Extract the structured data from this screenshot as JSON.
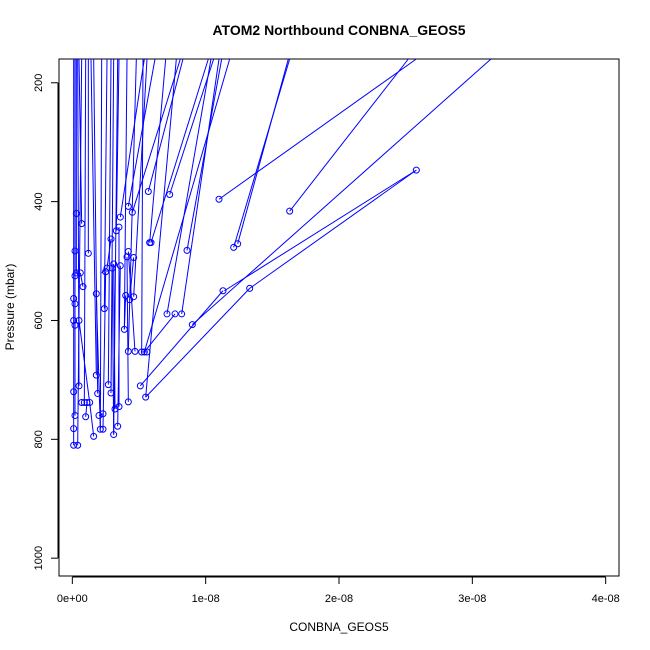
{
  "chart_data": {
    "type": "line",
    "title": "ATOM2 Northbound CONBNA_GEOS5",
    "xlabel": "CONBNA_GEOS5",
    "ylabel": "Pressure (mbar)",
    "xlim": [
      -1e-09,
      4.1e-08
    ],
    "ylim": [
      1030,
      160
    ],
    "y_reversed": true,
    "grid": false,
    "x_ticks": [
      0,
      1e-08,
      2e-08,
      3e-08,
      4e-08
    ],
    "x_tick_labels": [
      "0e+00",
      "1e-08",
      "2e-08",
      "3e-08",
      "4e-08"
    ],
    "y_ticks": [
      200,
      400,
      600,
      800,
      1000
    ],
    "y_tick_labels": [
      "200",
      "400",
      "600",
      "800",
      "1000"
    ],
    "series_color": "#0000ff",
    "marker": "open-circle",
    "points": [
      [
        1e-10,
        810
      ],
      [
        1e-10,
        782
      ],
      [
        2e-10,
        760
      ],
      [
        1e-10,
        720
      ],
      [
        2e-10,
        608
      ],
      [
        1e-10,
        600
      ],
      [
        2e-10,
        572
      ],
      [
        1e-10,
        563
      ],
      [
        2e-10,
        525
      ],
      [
        3e-10,
        520
      ],
      [
        2e-10,
        483
      ],
      [
        3e-10,
        420
      ],
      [
        4e-10,
        810
      ],
      [
        5e-10,
        710
      ],
      [
        5e-10,
        600
      ],
      [
        6e-10,
        520
      ],
      [
        7e-10,
        437
      ],
      [
        7e-10,
        738
      ],
      [
        8e-10,
        543
      ],
      [
        9e-10,
        738
      ],
      [
        1e-09,
        762
      ],
      [
        1.1e-09,
        738
      ],
      [
        1.3e-09,
        738
      ],
      [
        1.2e-09,
        487
      ],
      [
        1.6e-09,
        795
      ],
      [
        1.8e-09,
        692
      ],
      [
        1.8e-09,
        555
      ],
      [
        1.9e-09,
        723
      ],
      [
        2e-09,
        760
      ],
      [
        2.1e-09,
        783
      ],
      [
        2.3e-09,
        783
      ],
      [
        2.3e-09,
        757
      ],
      [
        2.4e-09,
        580
      ],
      [
        2.5e-09,
        518
      ],
      [
        2.6e-09,
        512
      ],
      [
        2.7e-09,
        708
      ],
      [
        2.9e-09,
        722
      ],
      [
        2.9e-09,
        463
      ],
      [
        3e-09,
        512
      ],
      [
        3.1e-09,
        792
      ],
      [
        3.2e-09,
        749
      ],
      [
        3.1e-09,
        505
      ],
      [
        3.3e-09,
        449
      ],
      [
        3.4e-09,
        778
      ],
      [
        3.5e-09,
        745
      ],
      [
        3.6e-09,
        508
      ],
      [
        3.5e-09,
        443
      ],
      [
        3.6e-09,
        426
      ],
      [
        3.9e-09,
        615
      ],
      [
        4e-09,
        558
      ],
      [
        4.2e-09,
        737
      ],
      [
        4.2e-09,
        652
      ],
      [
        4.1e-09,
        493
      ],
      [
        4.2e-09,
        484
      ],
      [
        4.3e-09,
        565
      ],
      [
        4.2e-09,
        408
      ],
      [
        4.5e-09,
        418
      ],
      [
        4.6e-09,
        494
      ],
      [
        4.6e-09,
        560
      ],
      [
        4.7e-09,
        652
      ],
      [
        5.1e-09,
        710
      ],
      [
        5.2e-09,
        653
      ],
      [
        5.4e-09,
        653
      ],
      [
        5.5e-09,
        729
      ],
      [
        5.6e-09,
        653
      ],
      [
        5.7e-09,
        383
      ],
      [
        5.8e-09,
        469
      ],
      [
        5.9e-09,
        469
      ],
      [
        7.1e-09,
        589
      ],
      [
        7.3e-09,
        388
      ],
      [
        7.7e-09,
        589
      ],
      [
        8.2e-09,
        589
      ],
      [
        8.6e-09,
        482
      ],
      [
        9e-09,
        607
      ],
      [
        1.1e-08,
        396
      ],
      [
        1.13e-08,
        550
      ],
      [
        1.21e-08,
        477
      ],
      [
        1.24e-08,
        471
      ],
      [
        1.33e-08,
        546
      ],
      [
        1.63e-08,
        416
      ],
      [
        2.58e-08,
        347
      ]
    ],
    "segments": [
      [
        [
          1e-10,
          810
        ],
        [
          1e-10,
          160
        ]
      ],
      [
        [
          2e-10,
          760
        ],
        [
          2e-10,
          160
        ]
      ],
      [
        [
          3e-10,
          520
        ],
        [
          3e-10,
          160
        ]
      ],
      [
        [
          5e-10,
          710
        ],
        [
          4e-10,
          160
        ]
      ],
      [
        [
          7e-10,
          437
        ],
        [
          5e-10,
          160
        ]
      ],
      [
        [
          4e-10,
          810
        ],
        [
          7e-10,
          160
        ]
      ],
      [
        [
          9e-10,
          738
        ],
        [
          1e-09,
          160
        ]
      ],
      [
        [
          1.2e-09,
          487
        ],
        [
          1.2e-09,
          160
        ]
      ],
      [
        [
          1.8e-09,
          692
        ],
        [
          1.4e-09,
          160
        ]
      ],
      [
        [
          1.9e-09,
          723
        ],
        [
          1.6e-09,
          160
        ]
      ],
      [
        [
          2.1e-09,
          783
        ],
        [
          2.2e-09,
          160
        ]
      ],
      [
        [
          2.4e-09,
          580
        ],
        [
          2.6e-09,
          160
        ]
      ],
      [
        [
          2.7e-09,
          708
        ],
        [
          2.9e-09,
          160
        ]
      ],
      [
        [
          2.9e-09,
          722
        ],
        [
          3.1e-09,
          160
        ]
      ],
      [
        [
          3.1e-09,
          792
        ],
        [
          3.4e-09,
          160
        ]
      ],
      [
        [
          3.3e-09,
          449
        ],
        [
          3.5e-09,
          160
        ]
      ],
      [
        [
          3.9e-09,
          615
        ],
        [
          4.1e-09,
          160
        ]
      ],
      [
        [
          4.2e-09,
          652
        ],
        [
          4.8e-09,
          160
        ]
      ],
      [
        [
          3.6e-09,
          426
        ],
        [
          5.4e-09,
          160
        ]
      ],
      [
        [
          4.6e-09,
          560
        ],
        [
          5.6e-09,
          160
        ]
      ],
      [
        [
          5.2e-09,
          653
        ],
        [
          5.3e-09,
          160
        ]
      ],
      [
        [
          5.5e-09,
          729
        ],
        [
          7.8e-09,
          160
        ]
      ],
      [
        [
          4.2e-09,
          408
        ],
        [
          6.2e-09,
          160
        ]
      ],
      [
        [
          5.8e-09,
          469
        ],
        [
          7e-09,
          160
        ]
      ],
      [
        [
          4.5e-09,
          418
        ],
        [
          8.1e-09,
          160
        ]
      ],
      [
        [
          5.7e-09,
          383
        ],
        [
          8.3e-09,
          160
        ]
      ],
      [
        [
          5.9e-09,
          469
        ],
        [
          1.02e-08,
          160
        ]
      ],
      [
        [
          7.1e-09,
          589
        ],
        [
          1.04e-08,
          160
        ]
      ],
      [
        [
          7.3e-09,
          388
        ],
        [
          1.06e-08,
          160
        ]
      ],
      [
        [
          8.2e-09,
          589
        ],
        [
          1.1e-08,
          160
        ]
      ],
      [
        [
          8.6e-09,
          482
        ],
        [
          1.12e-08,
          160
        ]
      ],
      [
        [
          5.4e-09,
          653
        ],
        [
          1.18e-08,
          160
        ]
      ],
      [
        [
          1.24e-08,
          471
        ],
        [
          1.62e-08,
          160
        ]
      ],
      [
        [
          1.21e-08,
          477
        ],
        [
          1.63e-08,
          160
        ]
      ],
      [
        [
          1.1e-08,
          396
        ],
        [
          2.58e-08,
          160
        ]
      ],
      [
        [
          1.63e-08,
          416
        ],
        [
          2.52e-08,
          160
        ]
      ],
      [
        [
          9e-09,
          607
        ],
        [
          3.14e-08,
          160
        ]
      ],
      [
        [
          2.58e-08,
          347
        ],
        [
          1.14e-08,
          550
        ]
      ],
      [
        [
          2.58e-08,
          347
        ],
        [
          1.33e-08,
          546
        ]
      ],
      [
        [
          1.33e-08,
          546
        ],
        [
          5.5e-09,
          729
        ]
      ],
      [
        [
          1.13e-08,
          550
        ],
        [
          5.1e-09,
          710
        ]
      ],
      [
        [
          1e-09,
          762
        ],
        [
          1.1e-09,
          738
        ]
      ],
      [
        [
          1.3e-09,
          738
        ],
        [
          5e-10,
          600
        ]
      ],
      [
        [
          1.6e-09,
          795
        ],
        [
          1.3e-09,
          738
        ]
      ],
      [
        [
          2e-09,
          760
        ],
        [
          2.3e-09,
          757
        ]
      ],
      [
        [
          2.3e-09,
          783
        ],
        [
          2.5e-09,
          518
        ]
      ],
      [
        [
          2.6e-09,
          512
        ],
        [
          2.9e-09,
          463
        ]
      ],
      [
        [
          3.2e-09,
          749
        ],
        [
          3.1e-09,
          505
        ]
      ],
      [
        [
          3.4e-09,
          778
        ],
        [
          3.6e-09,
          508
        ]
      ],
      [
        [
          3.5e-09,
          745
        ],
        [
          3.5e-09,
          443
        ]
      ],
      [
        [
          4.2e-09,
          737
        ],
        [
          4.1e-09,
          493
        ]
      ],
      [
        [
          4.3e-09,
          565
        ],
        [
          4.6e-09,
          494
        ]
      ],
      [
        [
          4.7e-09,
          652
        ],
        [
          4.2e-09,
          484
        ]
      ],
      [
        [
          5.6e-09,
          653
        ],
        [
          5.2e-09,
          653
        ]
      ],
      [
        [
          7.7e-09,
          589
        ],
        [
          5.4e-09,
          653
        ]
      ],
      [
        [
          1.8e-09,
          555
        ],
        [
          2.1e-09,
          783
        ]
      ],
      [
        [
          8e-10,
          543
        ],
        [
          6e-10,
          520
        ]
      ],
      [
        [
          3e-09,
          512
        ],
        [
          3.1e-09,
          792
        ]
      ],
      [
        [
          4e-09,
          558
        ],
        [
          3.9e-09,
          615
        ]
      ],
      [
        [
          2.2e-09,
          520
        ],
        [
          2.6e-09,
          512
        ]
      ]
    ]
  }
}
